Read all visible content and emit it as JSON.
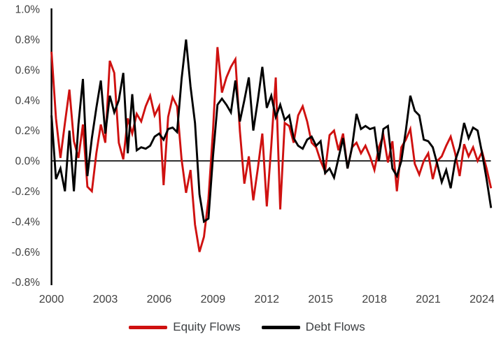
{
  "chart_data": {
    "type": "line",
    "title": "",
    "frequency": "quarterly",
    "grid": false,
    "legend_position": "bottom-center",
    "x_axis": {
      "start_year": 2000,
      "points_per_year": 4,
      "tick_labels": [
        "2000",
        "2003",
        "2006",
        "2009",
        "2012",
        "2015",
        "2018",
        "2021",
        "2024"
      ]
    },
    "y_axis": {
      "min": -0.8,
      "max": 1.0,
      "step": 0.2,
      "unit": "%",
      "tick_labels": [
        "1.0%",
        "0.8%",
        "0.6%",
        "0.4%",
        "0.2%",
        "0.0%",
        "-0.2%",
        "-0.4%",
        "-0.6%",
        "-0.8%"
      ]
    },
    "series": [
      {
        "name": "Equity Flows",
        "color": "#cf1110",
        "values": [
          0.72,
          0.28,
          0.02,
          0.25,
          0.47,
          0.13,
          0.02,
          0.24,
          -0.17,
          -0.2,
          0.05,
          0.24,
          0.12,
          0.66,
          0.58,
          0.12,
          0.01,
          0.28,
          0.18,
          0.31,
          0.26,
          0.36,
          0.43,
          0.3,
          0.36,
          -0.16,
          0.29,
          0.42,
          0.36,
          0.01,
          -0.21,
          -0.06,
          -0.42,
          -0.6,
          -0.5,
          -0.25,
          0.2,
          0.75,
          0.45,
          0.55,
          0.62,
          0.67,
          0.2,
          -0.15,
          0.03,
          -0.26,
          -0.05,
          0.18,
          -0.3,
          0.1,
          0.55,
          -0.32,
          0.25,
          0.23,
          0.12,
          0.3,
          0.36,
          0.26,
          0.12,
          0.09,
          0.0,
          -0.07,
          0.17,
          0.2,
          0.07,
          0.18,
          -0.05,
          0.09,
          0.12,
          0.05,
          0.1,
          0.03,
          -0.06,
          0.09,
          0.17,
          -0.01,
          0.13,
          -0.2,
          0.09,
          0.14,
          0.21,
          -0.02,
          -0.09,
          0.0,
          0.05,
          -0.12,
          0.0,
          0.03,
          0.1,
          0.16,
          0.05,
          -0.1,
          0.11,
          0.03,
          0.09,
          0.0,
          0.06,
          -0.05,
          -0.18
        ]
      },
      {
        "name": "Debt Flows",
        "color": "#000000",
        "values": [
          0.3,
          -0.12,
          -0.05,
          -0.2,
          0.2,
          -0.2,
          0.24,
          0.54,
          -0.1,
          0.15,
          0.35,
          0.53,
          0.18,
          0.43,
          0.32,
          0.4,
          0.58,
          0.05,
          0.44,
          0.07,
          0.09,
          0.08,
          0.1,
          0.16,
          0.18,
          0.14,
          0.21,
          0.22,
          0.19,
          0.54,
          0.8,
          0.49,
          0.25,
          -0.22,
          -0.4,
          -0.38,
          0.03,
          0.37,
          0.41,
          0.37,
          0.32,
          0.53,
          0.26,
          0.4,
          0.55,
          0.2,
          0.4,
          0.62,
          0.35,
          0.43,
          0.29,
          0.37,
          0.27,
          0.3,
          0.15,
          0.1,
          0.08,
          0.14,
          0.16,
          0.1,
          0.13,
          -0.08,
          -0.05,
          -0.11,
          0.02,
          0.15,
          -0.05,
          0.09,
          0.31,
          0.21,
          0.23,
          0.21,
          0.22,
          0.0,
          0.21,
          0.23,
          -0.05,
          -0.1,
          0.0,
          0.2,
          0.43,
          0.33,
          0.3,
          0.14,
          0.13,
          0.09,
          -0.02,
          -0.14,
          -0.06,
          -0.18,
          0.0,
          0.09,
          0.25,
          0.15,
          0.22,
          0.2,
          0.05,
          -0.12,
          -0.31
        ]
      }
    ]
  },
  "legend": {
    "items": [
      {
        "label": "Equity Flows"
      },
      {
        "label": "Debt Flows"
      }
    ]
  },
  "style": {
    "axis_color": "#000000",
    "tick_text_color": "#404040",
    "background": "#ffffff"
  }
}
